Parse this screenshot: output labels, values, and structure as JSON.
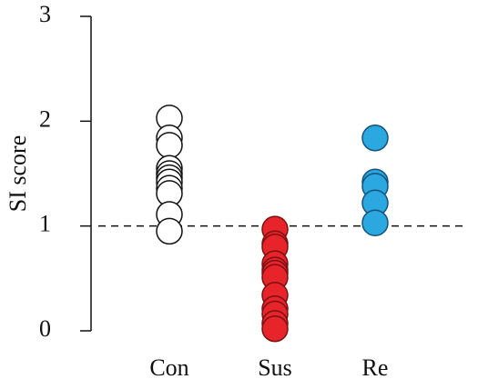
{
  "chart_data": {
    "type": "strip",
    "y_label": "SI score",
    "categories": [
      "Con",
      "Sus",
      "Re"
    ],
    "values": [
      [
        2.03,
        1.84,
        1.77,
        1.55,
        1.5,
        1.46,
        1.42,
        1.36,
        1.31,
        1.11,
        0.95
      ],
      [
        0.97,
        0.83,
        0.8,
        0.64,
        0.58,
        0.55,
        0.51,
        0.34,
        0.21,
        0.16,
        0.07,
        0.02
      ],
      [
        1.84,
        1.42,
        1.38,
        1.22,
        1.03
      ]
    ],
    "colors": [
      "#ffffff",
      "#e8242b",
      "#2ba8e0"
    ],
    "ylim": [
      0,
      3
    ],
    "yticks": [
      0,
      1,
      2,
      3
    ],
    "reference_line": 1
  }
}
